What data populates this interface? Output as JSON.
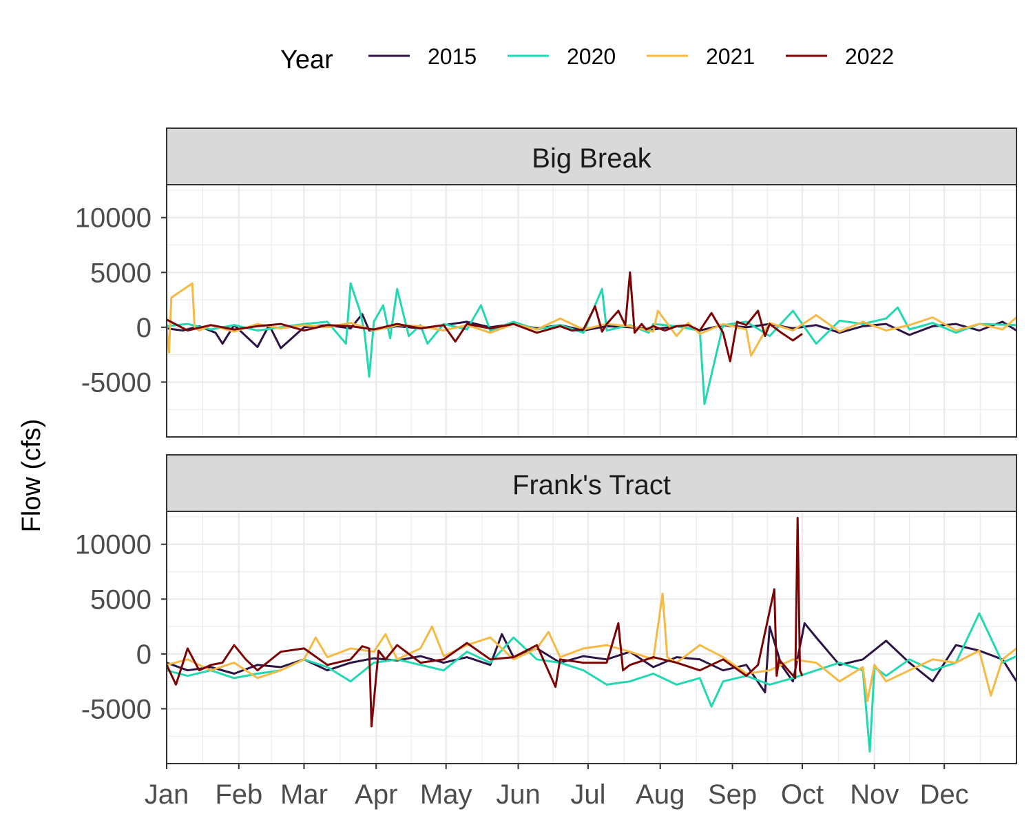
{
  "chart_data": {
    "type": "line",
    "ylabel": "Flow (cfs)",
    "legend": {
      "title": "Year",
      "placement": "top",
      "entries": [
        {
          "label": "2015",
          "color": "#2d1444"
        },
        {
          "label": "2020",
          "color": "#22d8b0"
        },
        {
          "label": "2021",
          "color": "#f5b944"
        },
        {
          "label": "2022",
          "color": "#7a0403"
        }
      ]
    },
    "x_ticks": [
      "Jan",
      "Feb",
      "Mar",
      "Apr",
      "May",
      "Jun",
      "Jul",
      "Aug",
      "Sep",
      "Oct",
      "Nov",
      "Dec"
    ],
    "x_tick_days": [
      1,
      32,
      60,
      91,
      121,
      152,
      182,
      213,
      244,
      274,
      305,
      335
    ],
    "xlim": [
      1,
      366
    ],
    "y_ticks": [
      "10000",
      "5000",
      "0",
      "-5000"
    ],
    "y_tick_values": [
      10000,
      5000,
      0,
      -5000
    ],
    "ylim": [
      -10000,
      13000
    ],
    "grid": true,
    "panels": [
      {
        "title": "Big Break",
        "series": [
          {
            "name": "2015",
            "color": "#2d1444",
            "x": [
              1,
              8,
              15,
              22,
              25,
              30,
              40,
              45,
              50,
              60,
              70,
              80,
              85,
              88,
              100,
              110,
              120,
              130,
              140,
              150,
              160,
              170,
              180,
              190,
              200,
              210,
              220,
              230,
              240,
              250,
              260,
              270,
              280,
              290,
              300,
              310,
              320,
              330,
              340,
              350,
              360,
              366
            ],
            "y": [
              -100,
              -300,
              100,
              -500,
              -1500,
              200,
              -1800,
              200,
              -1900,
              0,
              200,
              -100,
              1200,
              -300,
              100,
              -100,
              200,
              500,
              0,
              300,
              -100,
              200,
              -300,
              100,
              0,
              -200,
              100,
              -300,
              200,
              0,
              300,
              -100,
              200,
              -500,
              100,
              300,
              -700,
              100,
              300,
              -300,
              500,
              -300
            ]
          },
          {
            "name": "2020",
            "color": "#22d8b0",
            "x": [
              1,
              10,
              20,
              30,
              40,
              50,
              60,
              70,
              78,
              80,
              84,
              86,
              88,
              90,
              94,
              97,
              100,
              105,
              110,
              113,
              120,
              130,
              136,
              140,
              150,
              160,
              170,
              180,
              188,
              190,
              200,
              208,
              210,
              220,
              230,
              232,
              240,
              250,
              260,
              270,
              280,
              290,
              300,
              310,
              315,
              320,
              330,
              340,
              350,
              366
            ],
            "y": [
              100,
              300,
              -200,
              200,
              -300,
              0,
              300,
              500,
              -1500,
              4000,
              1500,
              -500,
              -4500,
              500,
              2000,
              -1000,
              3500,
              -800,
              200,
              -1500,
              300,
              -200,
              2000,
              -300,
              500,
              -200,
              200,
              -500,
              3500,
              -300,
              200,
              -500,
              300,
              100,
              -300,
              -7000,
              200,
              500,
              -800,
              1500,
              -1500,
              600,
              300,
              800,
              1800,
              -200,
              400,
              -500,
              300,
              200
            ]
          },
          {
            "name": "2021",
            "color": "#f5b944",
            "x": [
              1,
              2,
              3,
              12,
              13,
              15,
              20,
              30,
              40,
              50,
              60,
              70,
              80,
              90,
              100,
              110,
              120,
              130,
              140,
              150,
              160,
              170,
              180,
              190,
              200,
              210,
              212,
              220,
              225,
              230,
              240,
              250,
              252,
              260,
              270,
              280,
              290,
              300,
              310,
              320,
              330,
              340,
              350,
              360,
              366
            ],
            "y": [
              0,
              -2300,
              2700,
              4000,
              0,
              -300,
              200,
              -400,
              300,
              -100,
              200,
              0,
              400,
              -300,
              200,
              100,
              -300,
              200,
              -500,
              300,
              -200,
              800,
              -200,
              300,
              100,
              -400,
              1500,
              -800,
              400,
              -600,
              300,
              -200,
              -2600,
              400,
              -300,
              1100,
              -400,
              500,
              -300,
              200,
              900,
              -300,
              300,
              -200,
              900
            ]
          },
          {
            "name": "2022",
            "color": "#7a0403",
            "x": [
              1,
              10,
              20,
              30,
              40,
              50,
              60,
              70,
              80,
              90,
              100,
              110,
              120,
              125,
              130,
              140,
              150,
              160,
              170,
              175,
              180,
              185,
              188,
              190,
              195,
              198,
              200,
              202,
              205,
              207,
              210,
              215,
              220,
              225,
              230,
              235,
              240,
              243,
              246,
              250,
              255,
              258,
              260,
              265,
              270,
              274
            ],
            "y": [
              700,
              -300,
              200,
              -200,
              100,
              300,
              -300,
              200,
              100,
              -200,
              300,
              -100,
              200,
              -1300,
              300,
              -100,
              300,
              -500,
              100,
              -300,
              -200,
              1900,
              -400,
              300,
              1500,
              200,
              5000,
              -500,
              300,
              -200,
              100,
              -300,
              100,
              200,
              -300,
              1300,
              -500,
              -3100,
              500,
              200,
              1500,
              -800,
              300,
              -500,
              -1200,
              -600
            ]
          }
        ]
      },
      {
        "title": "Frank's Tract",
        "series": [
          {
            "name": "2015",
            "color": "#2d1444",
            "x": [
              1,
              10,
              20,
              30,
              40,
              50,
              60,
              70,
              80,
              90,
              100,
              110,
              120,
              130,
              140,
              145,
              150,
              160,
              170,
              180,
              190,
              200,
              210,
              220,
              230,
              240,
              250,
              258,
              260,
              265,
              270,
              275,
              280,
              290,
              300,
              310,
              320,
              330,
              340,
              350,
              360,
              366
            ],
            "y": [
              -800,
              -1500,
              -1200,
              -1800,
              -1000,
              -1200,
              -500,
              -1500,
              -800,
              -400,
              -600,
              -200,
              -800,
              -300,
              -1000,
              1800,
              -300,
              500,
              -800,
              -200,
              -500,
              200,
              -1200,
              -300,
              -500,
              -1500,
              -1000,
              -3500,
              2500,
              -1000,
              -2500,
              2800,
              1500,
              -1000,
              -500,
              1200,
              -800,
              -2500,
              800,
              300,
              -500,
              -2500
            ]
          },
          {
            "name": "2020",
            "color": "#22d8b0",
            "x": [
              1,
              10,
              20,
              30,
              40,
              50,
              60,
              70,
              80,
              90,
              100,
              110,
              120,
              130,
              140,
              150,
              160,
              170,
              180,
              190,
              200,
              210,
              220,
              230,
              235,
              240,
              250,
              260,
              270,
              280,
              290,
              300,
              303,
              305,
              310,
              320,
              330,
              340,
              350,
              360,
              366
            ],
            "y": [
              -1500,
              -2000,
              -1500,
              -2200,
              -1800,
              -1500,
              -500,
              -1200,
              -2500,
              -800,
              -500,
              -1000,
              -1500,
              200,
              -800,
              1500,
              -500,
              -800,
              -1500,
              -2800,
              -2500,
              -1800,
              -2800,
              -2200,
              -4800,
              -2500,
              -2000,
              -2800,
              -2200,
              -1500,
              -800,
              -1500,
              -8900,
              -1200,
              -2000,
              -500,
              -1500,
              -800,
              3700,
              -800,
              -200
            ]
          },
          {
            "name": "2021",
            "color": "#f5b944",
            "x": [
              1,
              10,
              20,
              30,
              40,
              50,
              60,
              65,
              70,
              80,
              90,
              95,
              100,
              110,
              115,
              120,
              130,
              140,
              150,
              160,
              165,
              170,
              180,
              190,
              200,
              210,
              214,
              216,
              220,
              230,
              240,
              250,
              260,
              270,
              280,
              290,
              300,
              302,
              305,
              310,
              320,
              330,
              340,
              350,
              355,
              360,
              366
            ],
            "y": [
              -1000,
              -500,
              -1500,
              -800,
              -2200,
              -1500,
              -500,
              1500,
              -300,
              500,
              200,
              1800,
              -500,
              500,
              2500,
              -200,
              800,
              1500,
              -500,
              500,
              2000,
              -300,
              500,
              800,
              200,
              -500,
              5500,
              -300,
              -800,
              800,
              -300,
              -1800,
              -1500,
              -500,
              -800,
              -2500,
              -1200,
              -4300,
              -1000,
              -2500,
              -1500,
              -500,
              -800,
              300,
              -3800,
              -500,
              500
            ]
          },
          {
            "name": "2022",
            "color": "#7a0403",
            "x": [
              1,
              5,
              10,
              15,
              20,
              25,
              30,
              35,
              40,
              50,
              60,
              70,
              80,
              85,
              88,
              89,
              92,
              95,
              100,
              110,
              120,
              130,
              140,
              150,
              160,
              168,
              170,
              180,
              190,
              195,
              197,
              200,
              210,
              220,
              230,
              240,
              250,
              255,
              262,
              263,
              264,
              268,
              271,
              272,
              273,
              274
            ],
            "y": [
              -1000,
              -2800,
              500,
              -1500,
              -1000,
              -800,
              800,
              -500,
              -1500,
              200,
              500,
              -1000,
              -500,
              700,
              500,
              -6600,
              300,
              -500,
              800,
              -800,
              -500,
              1000,
              -500,
              -300,
              800,
              -3000,
              -500,
              -800,
              -800,
              2800,
              -1500,
              -1000,
              -300,
              -800,
              -1500,
              -500,
              -2000,
              -1000,
              5900,
              -2000,
              -500,
              -1500,
              -2200,
              12400,
              -1500,
              -2000
            ]
          }
        ]
      }
    ]
  }
}
